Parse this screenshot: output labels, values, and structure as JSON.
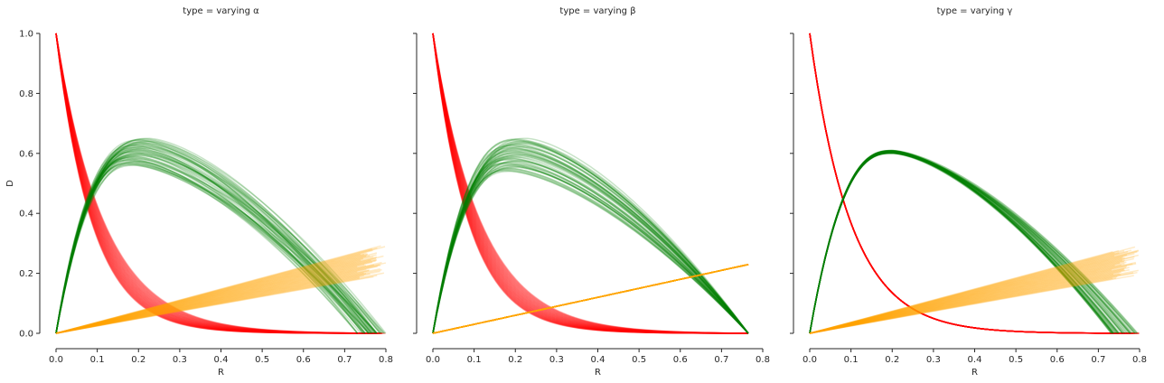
{
  "colors": {
    "red_curve": "#ff0000",
    "green_curve": "#008000",
    "orange_curve": "#ffa500",
    "axis": "#262626"
  },
  "chart_data": [
    {
      "type": "line",
      "title": "type = varying α",
      "xlabel": "R",
      "ylabel": "D",
      "xlim": [
        0.0,
        0.8
      ],
      "ylim": [
        0.0,
        1.0
      ],
      "xticks": [
        "0.0",
        "0.1",
        "0.2",
        "0.3",
        "0.4",
        "0.5",
        "0.6",
        "0.7",
        "0.8"
      ],
      "yticks": [
        "0.0",
        "0.2",
        "0.4",
        "0.6",
        "0.8",
        "1.0"
      ],
      "grid": false,
      "legend": "none",
      "series": [
        {
          "color": "red",
          "curve_count": 50,
          "x_end_range": [
            0.73,
            0.8
          ],
          "decay_k_range": [
            8.5,
            11.5
          ]
        },
        {
          "color": "green",
          "curve_count": 50,
          "x_end_range": [
            0.73,
            0.8
          ],
          "peak_x_range": [
            0.17,
            0.23
          ],
          "peak_y_range": [
            0.56,
            0.65
          ]
        },
        {
          "color": "orange",
          "curve_count": 50,
          "x_end_range": [
            0.73,
            0.8
          ],
          "slope_range": [
            0.245,
            0.37
          ]
        }
      ]
    },
    {
      "type": "line",
      "title": "type = varying β",
      "xlabel": "R",
      "ylabel": "",
      "xlim": [
        0.0,
        0.8
      ],
      "ylim": [
        0.0,
        1.0
      ],
      "xticks": [
        "0.0",
        "0.1",
        "0.2",
        "0.3",
        "0.4",
        "0.5",
        "0.6",
        "0.7",
        "0.8"
      ],
      "yticks": [
        "0.0",
        "0.2",
        "0.4",
        "0.6",
        "0.8",
        "1.0"
      ],
      "grid": false,
      "legend": "none",
      "series": [
        {
          "color": "red",
          "curve_count": 50,
          "x_end_range": [
            0.765,
            0.765
          ],
          "decay_k_range": [
            8.5,
            11.5
          ]
        },
        {
          "color": "green",
          "curve_count": 50,
          "x_end_range": [
            0.765,
            0.765
          ],
          "peak_x_range": [
            0.17,
            0.23
          ],
          "peak_y_range": [
            0.54,
            0.65
          ]
        },
        {
          "color": "orange",
          "curve_count": 50,
          "x_end_range": [
            0.765,
            0.765
          ],
          "slope_range": [
            0.3,
            0.3
          ]
        }
      ]
    },
    {
      "type": "line",
      "title": "type = varying γ",
      "xlabel": "R",
      "ylabel": "",
      "xlim": [
        0.0,
        0.8
      ],
      "ylim": [
        0.0,
        1.0
      ],
      "xticks": [
        "0.0",
        "0.1",
        "0.2",
        "0.3",
        "0.4",
        "0.5",
        "0.6",
        "0.7",
        "0.8"
      ],
      "yticks": [
        "0.0",
        "0.2",
        "0.4",
        "0.6",
        "0.8",
        "1.0"
      ],
      "grid": false,
      "legend": "none",
      "series": [
        {
          "color": "red",
          "curve_count": 50,
          "x_end_range": [
            0.73,
            0.8
          ],
          "decay_k_range": [
            10.0,
            10.0
          ]
        },
        {
          "color": "green",
          "curve_count": 50,
          "x_end_range": [
            0.73,
            0.8
          ],
          "peak_x_range": [
            0.2,
            0.2
          ],
          "peak_y_range": [
            0.6,
            0.61
          ]
        },
        {
          "color": "orange",
          "curve_count": 50,
          "x_end_range": [
            0.73,
            0.8
          ],
          "slope_range": [
            0.245,
            0.37
          ]
        }
      ]
    }
  ]
}
